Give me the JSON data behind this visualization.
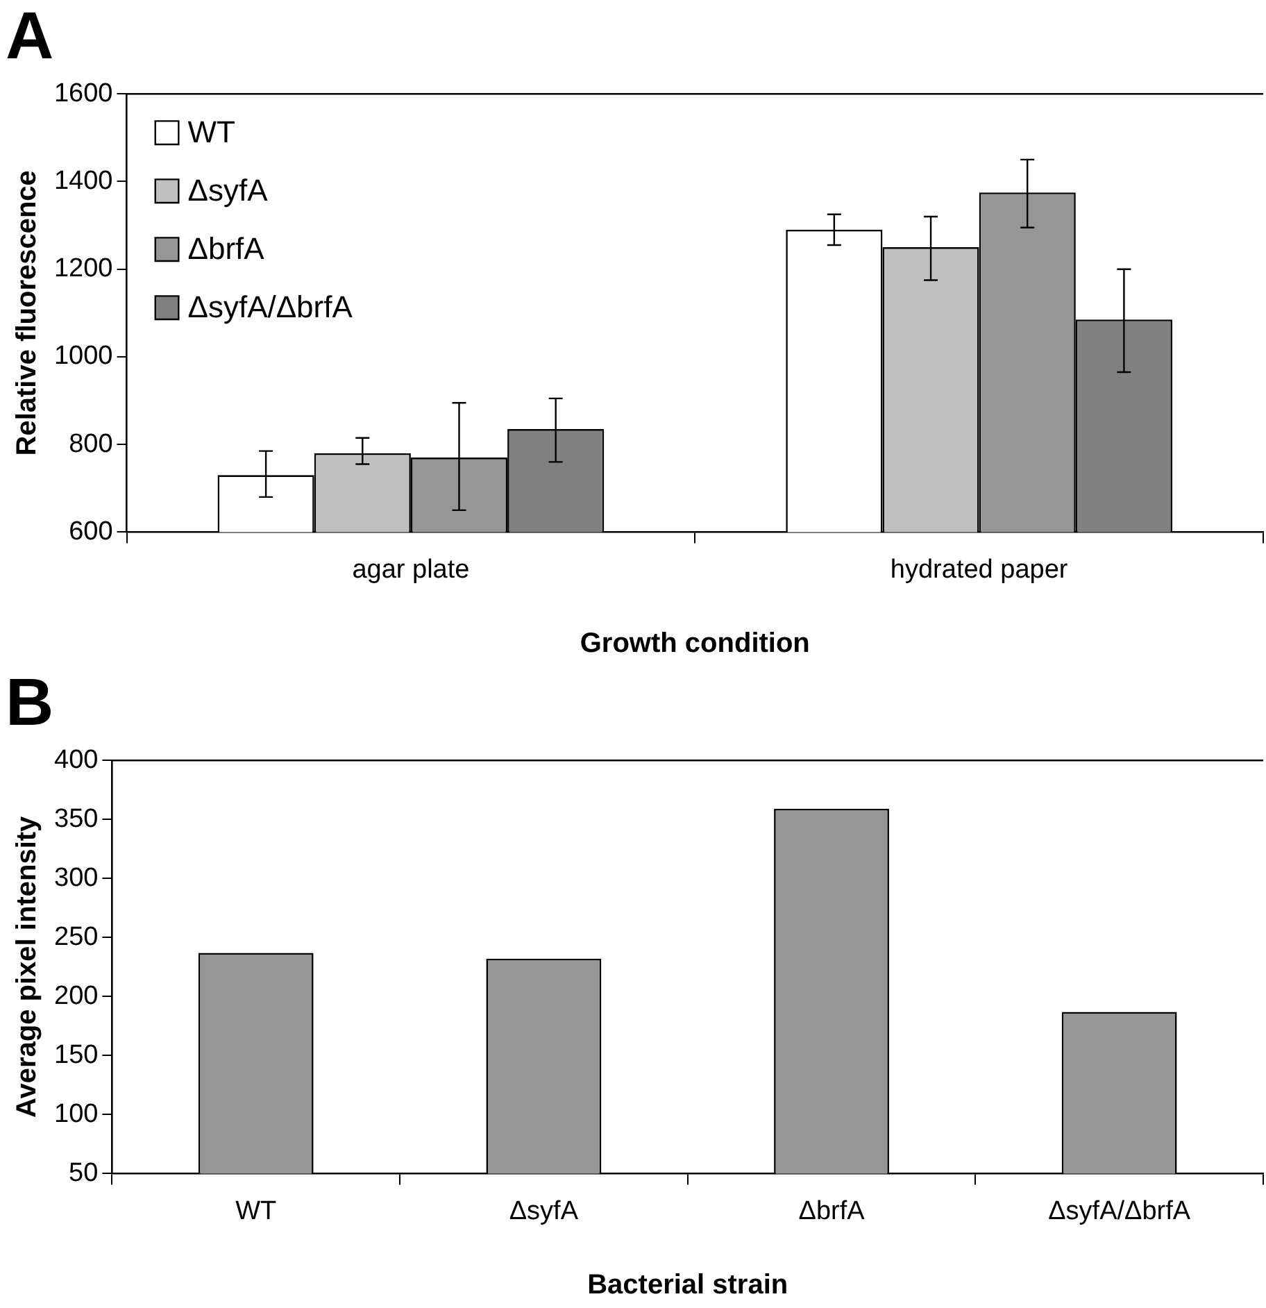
{
  "chart_data": [
    {
      "type": "bar",
      "title": "A",
      "xlabel": "Growth condition",
      "ylabel": "Relative fluorescence",
      "categories": [
        "agar plate",
        "hydrated paper"
      ],
      "ylim": [
        600,
        1600
      ],
      "yticks": [
        600,
        800,
        1000,
        1200,
        1400,
        1600
      ],
      "grid": false,
      "legend": "top left",
      "series": [
        {
          "name": "WT",
          "color": "#ffffff",
          "values": [
            730,
            1290
          ],
          "errors": [
            [
              680,
              785
            ],
            [
              1255,
              1325
            ]
          ]
        },
        {
          "name": "ΔsyfA",
          "color": "#c0c0c0",
          "values": [
            780,
            1250
          ],
          "errors": [
            [
              755,
              815
            ],
            [
              1175,
              1320
            ]
          ]
        },
        {
          "name": "ΔbrfA",
          "color": "#969696",
          "values": [
            770,
            1375
          ],
          "errors": [
            [
              650,
              895
            ],
            [
              1295,
              1450
            ]
          ]
        },
        {
          "name": "ΔsyfA/ΔbrfA",
          "color": "#808080",
          "values": [
            835,
            1085
          ],
          "errors": [
            [
              760,
              905
            ],
            [
              965,
              1200
            ]
          ]
        }
      ]
    },
    {
      "type": "bar",
      "title": "B",
      "xlabel": "Bacterial strain",
      "ylabel": "Average pixel intensity",
      "categories": [
        "WT",
        "ΔsyfA",
        "ΔbrfA",
        "ΔsyfA/ΔbrfA"
      ],
      "ylim": [
        50,
        400
      ],
      "yticks": [
        50,
        100,
        150,
        200,
        250,
        300,
        350,
        400
      ],
      "grid": false,
      "legend": false,
      "series": [
        {
          "color": "#969696",
          "values": [
            237,
            232,
            359,
            187
          ]
        }
      ]
    }
  ]
}
